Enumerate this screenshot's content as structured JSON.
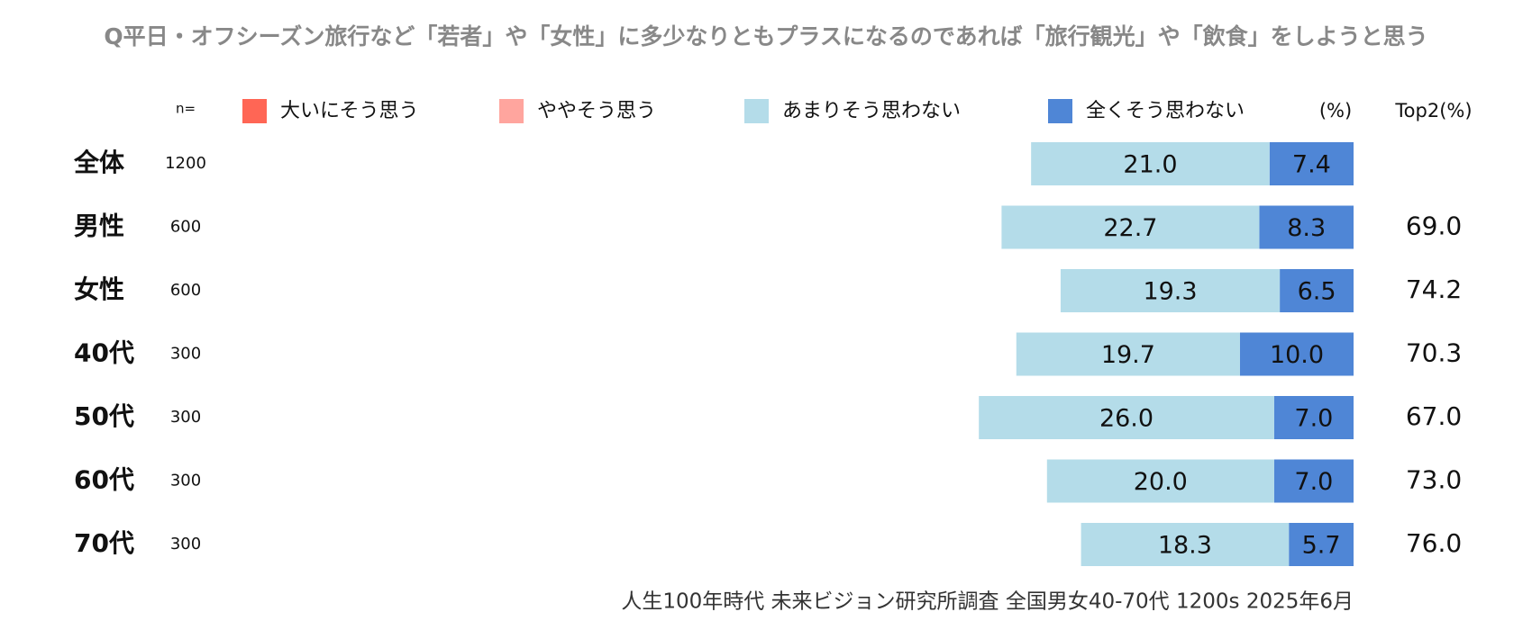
{
  "chart_data": {
    "type": "bar",
    "title": "Q平日・オフシーズン旅行など「若者」や「女性」に多少なりともプラスになるのであれば「旅行観光」や「飲食」をしようと思う",
    "n_label": "n=",
    "unit_label": "(%)",
    "categories": [
      "全体",
      "男性",
      "女性",
      "40代",
      "50代",
      "60代",
      "70代"
    ],
    "n": [
      1200,
      600,
      600,
      300,
      300,
      300,
      300
    ],
    "series": [
      {
        "name": "大いにそう思う",
        "color": "#ff6655",
        "values": [
          null,
          null,
          null,
          null,
          null,
          null,
          null
        ]
      },
      {
        "name": "ややそう思う",
        "color": "#ffa59e",
        "values": [
          null,
          null,
          null,
          null,
          null,
          null,
          null
        ]
      },
      {
        "name": "あまりそう思わない",
        "color": "#b4dce9",
        "values": [
          21,
          22.7,
          19.3,
          19.7,
          26,
          20,
          18.3
        ],
        "value_labels": [
          "21.0",
          "22.7",
          "19.3",
          "19.7",
          "26.0",
          "20.0",
          "18.3"
        ]
      },
      {
        "name": "全くそう思わない",
        "color": "#4f86d6",
        "values": [
          7.4,
          8.3,
          6.5,
          10,
          7,
          7,
          5.7
        ],
        "value_labels": [
          "7.4",
          "8.3",
          "6.5",
          "10.0",
          "7.0",
          "7.0",
          "5.7"
        ]
      }
    ],
    "top2": {
      "name": "Top2(%)",
      "values": [
        null,
        69,
        74.2,
        70.3,
        67,
        73,
        76
      ],
      "value_labels": [
        null,
        "69.0",
        "74.2",
        "70.3",
        "67.0",
        "73.0",
        "76.0"
      ]
    },
    "note": "人生100年時代 未来ビジョン研究所調査 全国男女40-70代 1200s 2025年6月"
  }
}
